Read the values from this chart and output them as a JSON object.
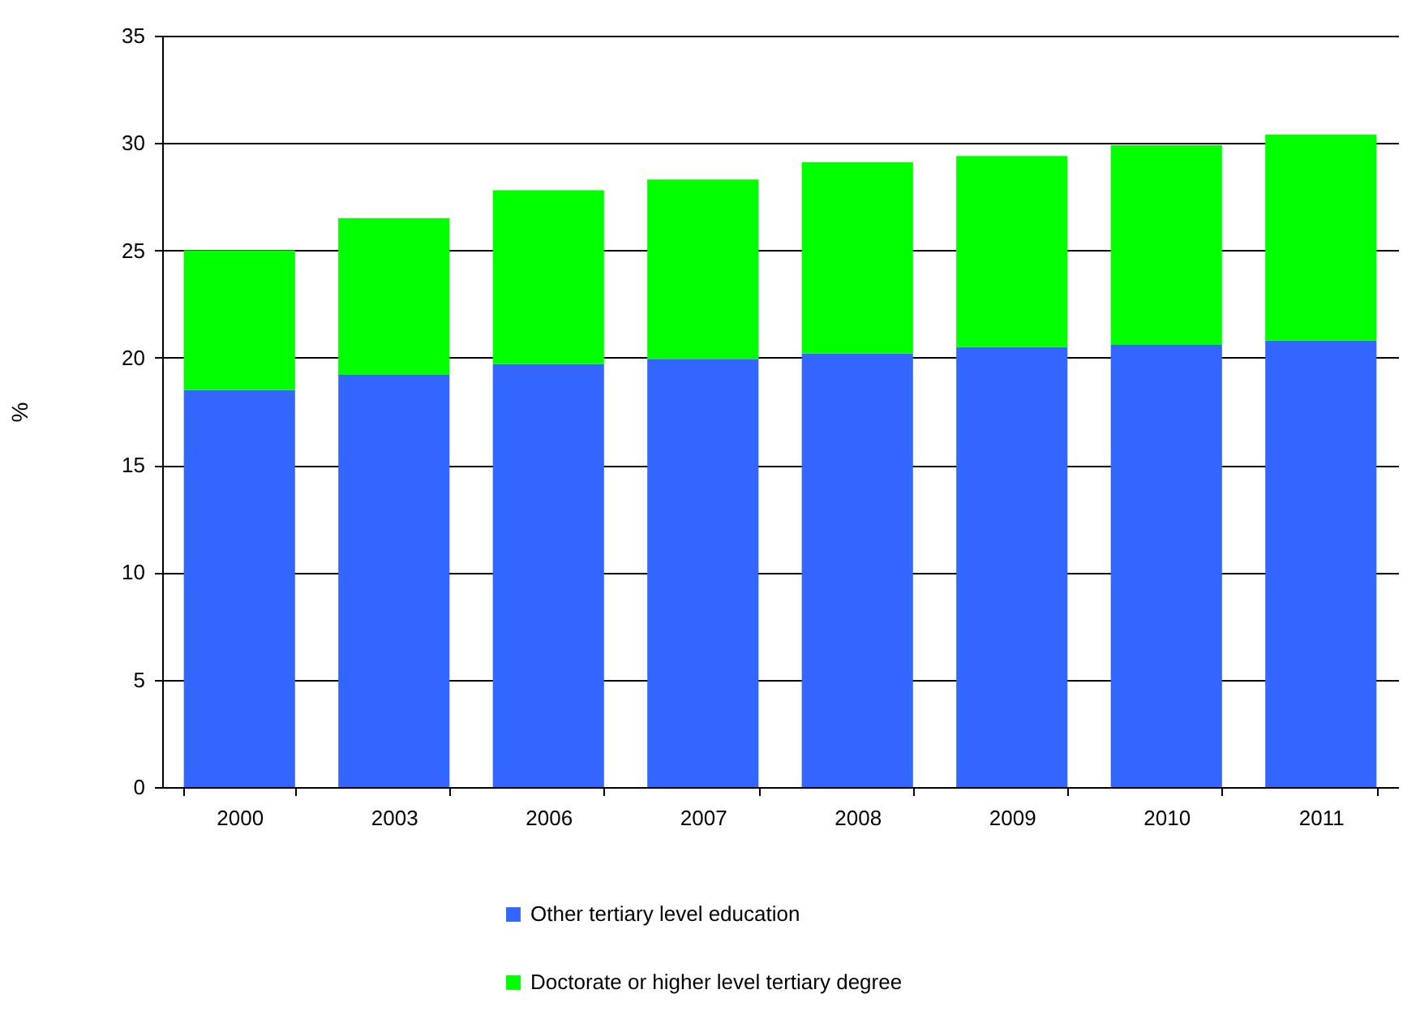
{
  "chart_data": {
    "type": "bar",
    "stacked": true,
    "ylabel": "%",
    "categories": [
      "2000",
      "2003",
      "2006",
      "2007",
      "2008",
      "2009",
      "2010",
      "2011"
    ],
    "series": [
      {
        "name": "Other tertiary level education",
        "color": "#3366ff",
        "values": [
          18.5,
          19.2,
          19.7,
          19.95,
          20.2,
          20.5,
          20.6,
          20.8
        ]
      },
      {
        "name": "Doctorate or higher level tertiary degree",
        "color": "#00ff00",
        "values": [
          6.5,
          7.3,
          8.1,
          8.35,
          8.9,
          8.9,
          9.3,
          9.6
        ]
      }
    ],
    "ylim": [
      0,
      35
    ],
    "yticks": [
      0,
      5,
      10,
      15,
      20,
      25,
      30,
      35
    ],
    "grid": "y",
    "legend": "bottom"
  }
}
